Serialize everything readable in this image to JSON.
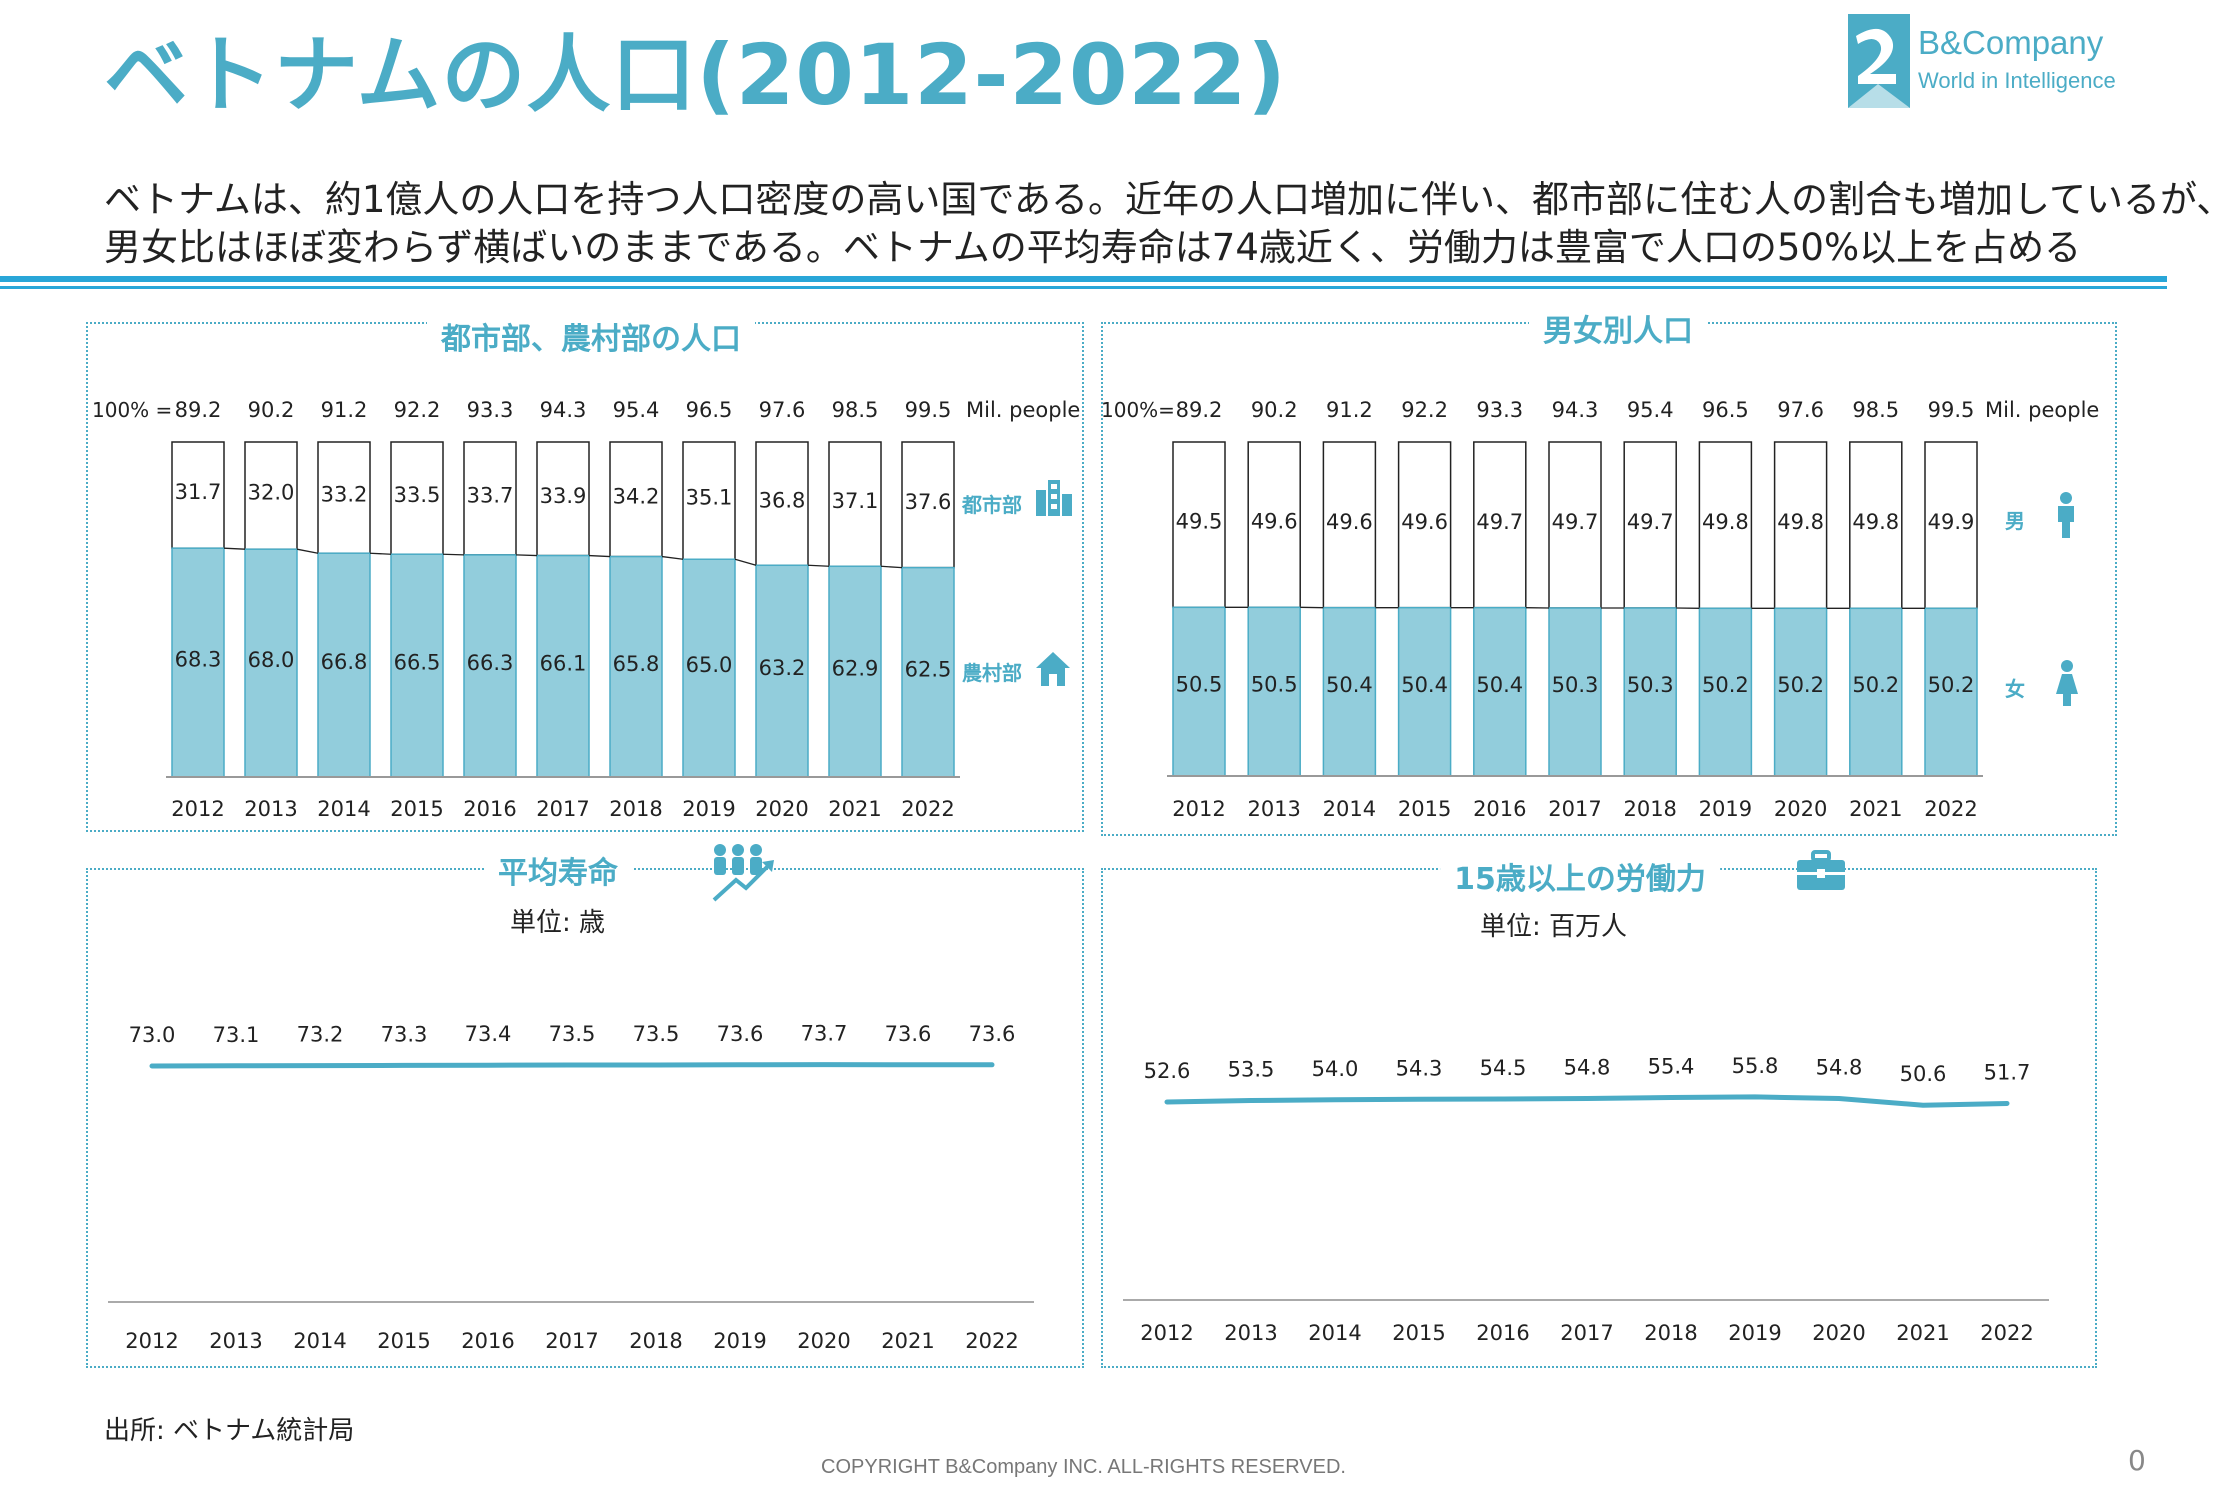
{
  "title": "ベトナムの人口(2012-2022)",
  "logo": {
    "name": "B&Company",
    "tagline": "World in Intelligence"
  },
  "description": [
    "ベトナムは、約1億人の人口を持つ人口密度の高い国である。近年の人口増加に伴い、都市部に住む人の割合も増加しているが、",
    "男女比はほぼ変わらず横ばいのままである。ベトナムの平均寿命は74歳近く、労働力は豊富で人口の50%以上を占める"
  ],
  "colors": {
    "accent": "#4bacc6",
    "bar_fill": "#92cddc",
    "rule": "#29a6d8"
  },
  "panels": {
    "urban_rural": {
      "title": "都市部、農村部の人口",
      "total_prefix": "100% =",
      "total_unit": "Mil. people",
      "legend_top": "都市部",
      "legend_bottom": "農村部",
      "icon_top": "buildings-icon",
      "icon_bottom": "house-icon"
    },
    "gender": {
      "title": "男女別人口",
      "total_prefix": "100%=",
      "total_unit": "Mil. people",
      "legend_top": "男",
      "legend_bottom": "女",
      "icon_top": "male-person-icon",
      "icon_bottom": "female-person-icon"
    },
    "life_expectancy": {
      "title": "平均寿命",
      "unit": "単位: 歳",
      "icon": "people-growth-icon"
    },
    "labor_force": {
      "title": "15歳以上の労働力",
      "unit": "単位: 百万人",
      "icon": "briefcase-icon"
    }
  },
  "source": "出所: ベトナム統計局",
  "copyright": "COPYRIGHT B&Company INC. ALL-RIGHTS RESERVED.",
  "page_number": "0",
  "chart_data": [
    {
      "type": "bar",
      "stacked": true,
      "percent": true,
      "categories": [
        "2012",
        "2013",
        "2014",
        "2015",
        "2016",
        "2017",
        "2018",
        "2019",
        "2020",
        "2021",
        "2022"
      ],
      "totals": [
        "89.2",
        "90.2",
        "91.2",
        "92.2",
        "93.3",
        "94.3",
        "95.4",
        "96.5",
        "97.6",
        "98.5",
        "99.5"
      ],
      "series": [
        {
          "name": "農村部",
          "values": [
            "68.3",
            "68.0",
            "66.8",
            "66.5",
            "66.3",
            "66.1",
            "65.8",
            "65.0",
            "63.2",
            "62.9",
            "62.5"
          ]
        },
        {
          "name": "都市部",
          "values": [
            "31.7",
            "32.0",
            "33.2",
            "33.5",
            "33.7",
            "33.9",
            "34.2",
            "35.1",
            "36.8",
            "37.1",
            "37.6"
          ]
        }
      ],
      "ylim": [
        0,
        100
      ],
      "grid": false
    },
    {
      "type": "bar",
      "stacked": true,
      "percent": true,
      "categories": [
        "2012",
        "2013",
        "2014",
        "2015",
        "2016",
        "2017",
        "2018",
        "2019",
        "2020",
        "2021",
        "2022"
      ],
      "totals": [
        "89.2",
        "90.2",
        "91.2",
        "92.2",
        "93.3",
        "94.3",
        "95.4",
        "96.5",
        "97.6",
        "98.5",
        "99.5"
      ],
      "series": [
        {
          "name": "女",
          "values": [
            "50.5",
            "50.5",
            "50.4",
            "50.4",
            "50.4",
            "50.3",
            "50.3",
            "50.2",
            "50.2",
            "50.2",
            "50.2"
          ]
        },
        {
          "name": "男",
          "values": [
            "49.5",
            "49.6",
            "49.6",
            "49.6",
            "49.7",
            "49.7",
            "49.7",
            "49.8",
            "49.8",
            "49.8",
            "49.9"
          ]
        }
      ],
      "ylim": [
        0,
        100
      ],
      "grid": false
    },
    {
      "type": "line",
      "x": [
        "2012",
        "2013",
        "2014",
        "2015",
        "2016",
        "2017",
        "2018",
        "2019",
        "2020",
        "2021",
        "2022"
      ],
      "values": [
        "73.0",
        "73.1",
        "73.2",
        "73.3",
        "73.4",
        "73.5",
        "73.5",
        "73.6",
        "73.7",
        "73.6",
        "73.6"
      ],
      "grid": false
    },
    {
      "type": "line",
      "x": [
        "2012",
        "2013",
        "2014",
        "2015",
        "2016",
        "2017",
        "2018",
        "2019",
        "2020",
        "2021",
        "2022"
      ],
      "values": [
        "52.6",
        "53.5",
        "54.0",
        "54.3",
        "54.5",
        "54.8",
        "55.4",
        "55.8",
        "54.8",
        "50.6",
        "51.7"
      ],
      "grid": false
    }
  ]
}
